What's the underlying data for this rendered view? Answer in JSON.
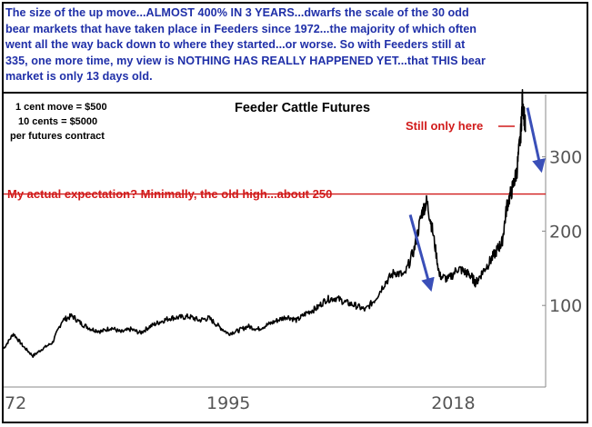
{
  "headline": {
    "lines": [
      "The size of the up move...ALMOST 400% IN 3 YEARS...dwarfs the scale of the 30 odd",
      "bear markets that have taken place in Feeders since 1972...the majority of which often",
      "went all the way back down to where they started...or worse. So with Feeders still at",
      "335, one more time, my view is NOTHING HAS REALLY HAPPENED YET...that THIS bear",
      "market is only 13 days old."
    ]
  },
  "chart_data": {
    "type": "line",
    "title": "Feeder Cattle Futures",
    "notes": [
      "1 cent move = $500",
      "10 cents = $5000",
      "per futures contract"
    ],
    "x_ticks": [
      "72",
      "1995",
      "2018"
    ],
    "y_ticks": [
      100,
      200,
      300
    ],
    "xlim": [
      1972,
      2025.5
    ],
    "ylim": [
      0,
      390
    ],
    "annotations": {
      "still_only_here": "Still only here",
      "expectation": "My actual expectation? Minimally, the old high...about 250",
      "expectation_level": 250
    },
    "series": [
      {
        "color": "#000000",
        "x": [
          1972,
          1973,
          1974,
          1975,
          1976,
          1977,
          1978,
          1979,
          1980,
          1981,
          1982,
          1983,
          1984,
          1985,
          1986,
          1987,
          1988,
          1989,
          1990,
          1991,
          1992,
          1993,
          1994,
          1995,
          1996,
          1997,
          1998,
          1999,
          2000,
          2001,
          2002,
          2003,
          2004,
          2005,
          2006,
          2007,
          2008,
          2009,
          2010,
          2011,
          2012,
          2013,
          2014,
          2014.8,
          2015.3,
          2015.9,
          2016.6,
          2017.5,
          2018.5,
          2019.2,
          2019.8,
          2020.3,
          2021,
          2021.8,
          2022.5,
          2023,
          2023.5,
          2024,
          2024.5,
          2024.9,
          2025.1,
          2025.4
        ],
        "values": [
          42,
          62,
          45,
          32,
          42,
          50,
          80,
          86,
          75,
          68,
          65,
          70,
          64,
          68,
          63,
          72,
          78,
          83,
          84,
          85,
          80,
          83,
          72,
          62,
          66,
          72,
          68,
          74,
          80,
          85,
          80,
          90,
          96,
          108,
          110,
          104,
          100,
          94,
          108,
          130,
          145,
          140,
          175,
          225,
          240,
          200,
          140,
          135,
          150,
          145,
          140,
          130,
          145,
          160,
          175,
          185,
          235,
          255,
          280,
          330,
          380,
          335
        ]
      }
    ],
    "arrows": [
      {
        "x1": 2013.6,
        "y1": 222,
        "x2": 2015.7,
        "y2": 122
      },
      {
        "x1": 2025.6,
        "y1": 366,
        "x2": 2027.0,
        "y2": 282
      }
    ]
  }
}
